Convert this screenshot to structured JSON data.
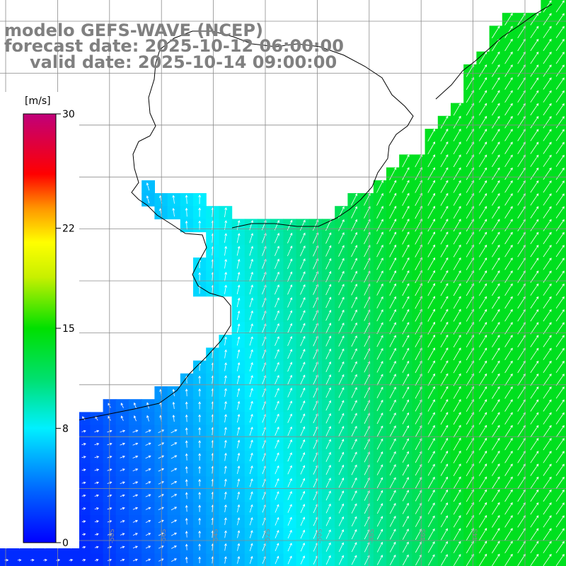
{
  "header": {
    "model_line": "modelo GEFS-WAVE (NCEP)",
    "forecast_line": "forecast date: 2025-10-12 06:00:00",
    "valid_line": "valid date: 2025-10-14 09:00:00"
  },
  "legend": {
    "unit": "[m/s]",
    "ticks": [
      "30",
      "22",
      "15",
      "8",
      "0"
    ],
    "tick_values": [
      30,
      22,
      15,
      8,
      0
    ],
    "range": [
      0,
      30
    ]
  },
  "map": {
    "variable": "wind speed and direction",
    "lon_labels": [
      "-62S",
      "-60S",
      "-58S",
      "-56S",
      "-54S",
      "-52S",
      "-50S",
      "-48S",
      "-46S",
      "-44S"
    ],
    "colors": {
      "land": "#ffffff",
      "grid": "#8c8c8c",
      "coast": "#000000",
      "arrows": "#ffffff"
    }
  }
}
